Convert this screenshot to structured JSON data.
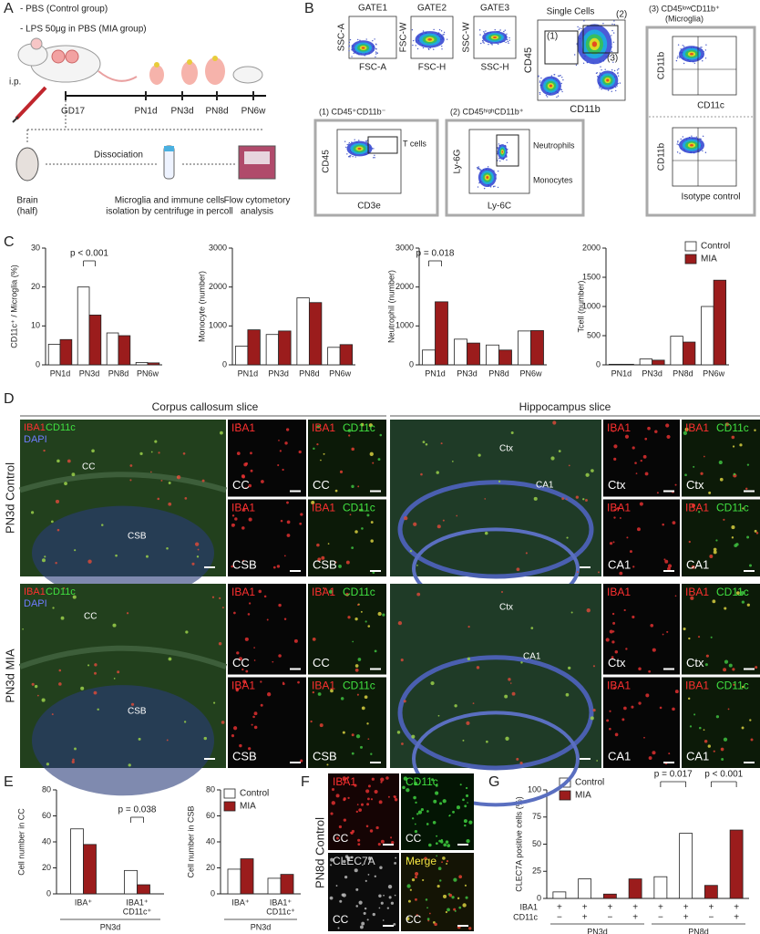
{
  "panel_labels": [
    "A",
    "B",
    "C",
    "D",
    "E",
    "F",
    "G"
  ],
  "panel_a": {
    "treatments": [
      "- PBS (Control group)",
      "- LPS 50μg in PBS (MIA group)"
    ],
    "injection": "i.p.",
    "timepoints": [
      "GD17",
      "PN1d",
      "PN3d",
      "PN8d",
      "PN6w"
    ],
    "steps": {
      "brain": [
        "Brain",
        "(half)"
      ],
      "dissociation": "Dissociation",
      "isolation": [
        "Microglia and immune cells",
        "isolation by centrifuge in percoll"
      ],
      "flow": [
        "Flow cytometory",
        "analysis"
      ]
    }
  },
  "panel_b": {
    "gates": [
      {
        "title": "GATE1",
        "y": "SSC-A",
        "x": "FSC-A"
      },
      {
        "title": "GATE2",
        "y": "FSC-W",
        "x": "FSC-H"
      },
      {
        "title": "GATE3",
        "y": "SSC-W",
        "x": "SSC-H"
      }
    ],
    "single": {
      "title": "Single Cells",
      "y": "CD45",
      "x": "CD11b",
      "regions": [
        "(1)",
        "(2)",
        "(3)"
      ]
    },
    "microglia": {
      "title": [
        "(3) CD45ˡᵒʷCD11b⁺",
        "(Microglia)"
      ],
      "plots": [
        {
          "y": "CD11b",
          "x": "CD11c"
        },
        {
          "y": "CD11b",
          "x": "Isotype control"
        }
      ]
    },
    "tcells": {
      "title": "(1) CD45⁺CD11b⁻",
      "y": "CD45",
      "x": "CD3e",
      "gate": "T cells"
    },
    "myeloid": {
      "title": "(2) CD45ʰⁱᵍʰCD11b⁺",
      "y": "Ly-6G",
      "x": "Ly-6C",
      "gates": [
        "Neutrophils",
        "Monocytes"
      ]
    }
  },
  "panel_d": {
    "titles": [
      "Corpus callosum slice",
      "Hippocampus slice"
    ],
    "rows": [
      {
        "label": "PN3d Control",
        "left_image": {
          "stains": [
            "IBA1",
            "CD11c",
            "DAPI"
          ],
          "regions": [
            "CC",
            "CSB"
          ]
        },
        "right_image": {
          "regions": [
            "Ctx",
            "CA1"
          ]
        },
        "tiles": [
          {
            "stains": [
              "IBA1"
            ],
            "region": "CC"
          },
          {
            "stains": [
              "IBA1",
              "CD11c"
            ],
            "region": "CC"
          },
          {
            "stains": [
              "IBA1"
            ],
            "region": "CSB"
          },
          {
            "stains": [
              "IBA1",
              "CD11c"
            ],
            "region": "CSB"
          },
          {
            "stains": [
              "IBA1"
            ],
            "region": "Ctx"
          },
          {
            "stains": [
              "IBA1",
              "CD11c"
            ],
            "region": "Ctx"
          },
          {
            "stains": [
              "IBA1"
            ],
            "region": "CA1"
          },
          {
            "stains": [
              "IBA1",
              "CD11c"
            ],
            "region": "CA1"
          }
        ]
      },
      {
        "label": "PN3d MIA",
        "left_image": {
          "stains": [
            "IBA1",
            "CD11c",
            "DAPI"
          ],
          "regions": [
            "CC",
            "CSB"
          ]
        },
        "right_image": {
          "regions": [
            "Ctx",
            "CA1"
          ]
        },
        "tiles": [
          {
            "stains": [
              "IBA1"
            ],
            "region": "CC"
          },
          {
            "stains": [
              "IBA1",
              "CD11c"
            ],
            "region": "CC"
          },
          {
            "stains": [
              "IBA1"
            ],
            "region": "CSB"
          },
          {
            "stains": [
              "IBA1",
              "CD11c"
            ],
            "region": "CSB"
          },
          {
            "stains": [
              "IBA1"
            ],
            "region": "Ctx"
          },
          {
            "stains": [
              "IBA1",
              "CD11c"
            ],
            "region": "Ctx"
          },
          {
            "stains": [
              "IBA1"
            ],
            "region": "CA1"
          },
          {
            "stains": [
              "IBA1",
              "CD11c"
            ],
            "region": "CA1"
          }
        ]
      }
    ]
  },
  "panel_f": {
    "row": "PN8d Control",
    "tiles": [
      {
        "stain": "IBA1",
        "region": "CC"
      },
      {
        "stain": "CD11c",
        "region": "CC"
      },
      {
        "stain": "CLEC7A",
        "region": "CC"
      },
      {
        "stain": "Merge",
        "region": "CC"
      }
    ]
  },
  "chart_data": [
    {
      "type": "bar",
      "y_title": "CD11c⁺ / Microglia (%)",
      "categories": [
        "PN1d",
        "PN3d",
        "PN8d",
        "PN6w"
      ],
      "series": [
        {
          "color": "#ffffff",
          "values": [
            5.3,
            20,
            8.2,
            0.6
          ]
        },
        {
          "color": "#9b1c1c",
          "values": [
            6.5,
            12.8,
            7.5,
            0.5
          ]
        }
      ],
      "ylim": [
        0,
        30
      ],
      "yticks": [
        0,
        10,
        20,
        30
      ],
      "annotations": [
        "p < 0.001"
      ]
    },
    {
      "type": "bar",
      "y_title": "Monocyte (number)",
      "categories": [
        "PN1d",
        "PN3d",
        "PN8d",
        "PN6w"
      ],
      "series": [
        {
          "color": "#ffffff",
          "values": [
            480,
            780,
            1720,
            450
          ]
        },
        {
          "color": "#9b1c1c",
          "values": [
            900,
            870,
            1600,
            520
          ]
        }
      ],
      "ylim": [
        0,
        3000
      ],
      "yticks": [
        0,
        1000,
        2000,
        3000
      ]
    },
    {
      "type": "bar",
      "y_title": "Neutrophil (number)",
      "categories": [
        "PN1d",
        "PN3d",
        "PN8d",
        "PN6w"
      ],
      "series": [
        {
          "color": "#ffffff",
          "values": [
            380,
            660,
            510,
            870
          ]
        },
        {
          "color": "#9b1c1c",
          "values": [
            1620,
            560,
            380,
            880
          ]
        }
      ],
      "ylim": [
        0,
        3000
      ],
      "yticks": [
        0,
        1000,
        2000,
        3000
      ],
      "annotations": [
        "p = 0.018"
      ]
    },
    {
      "type": "bar",
      "y_title": "Tcell (number)",
      "categories": [
        "PN1d",
        "PN3d",
        "PN8d",
        "PN6w"
      ],
      "series": [
        {
          "name": "Control",
          "color": "#ffffff",
          "values": [
            10,
            100,
            490,
            1000
          ]
        },
        {
          "name": "MIA",
          "color": "#9b1c1c",
          "values": [
            10,
            80,
            390,
            1450
          ]
        }
      ],
      "ylim": [
        0,
        2000
      ],
      "yticks": [
        0,
        500,
        1000,
        1500,
        2000
      ],
      "legend": true
    },
    {
      "type": "bar",
      "y_title": "Cell number in CC",
      "categories": [
        [
          "IBA⁺"
        ],
        [
          "IBA1⁺",
          "CD11c⁺"
        ]
      ],
      "group_labels": [
        "PN3d"
      ],
      "series": [
        {
          "color": "#ffffff",
          "values": [
            50,
            18
          ]
        },
        {
          "color": "#9b1c1c",
          "values": [
            38,
            7
          ]
        }
      ],
      "ylim": [
        0,
        80
      ],
      "yticks": [
        0,
        20,
        40,
        60,
        80
      ],
      "annotations": [
        "p = 0.038"
      ]
    },
    {
      "type": "bar",
      "y_title": "Cell number in CSB",
      "categories": [
        [
          "IBA⁺"
        ],
        [
          "IBA1⁺",
          "CD11c⁺"
        ]
      ],
      "group_labels": [
        "PN3d"
      ],
      "series": [
        {
          "name": "Control",
          "color": "#ffffff",
          "values": [
            19,
            12
          ]
        },
        {
          "name": "MIA",
          "color": "#9b1c1c",
          "values": [
            27,
            15
          ]
        }
      ],
      "ylim": [
        0,
        80
      ],
      "yticks": [
        0,
        20,
        40,
        60,
        80
      ],
      "legend": true
    },
    {
      "type": "bar",
      "y_title": "CLEC7A positive cells (%)",
      "group_labels": [
        "PN3d",
        "PN8d"
      ],
      "sign_rows": [
        {
          "name": "IBA1",
          "signs": [
            "+",
            "+",
            "+",
            "+",
            "+",
            "+",
            "+",
            "+"
          ]
        },
        {
          "name": "CD11c",
          "signs": [
            "−",
            "+",
            "−",
            "+",
            "−",
            "+",
            "−",
            "+"
          ]
        }
      ],
      "series": [
        {
          "name": "Control",
          "color": "#ffffff",
          "values": [
            6,
            18,
            null,
            null,
            20,
            60,
            null,
            null
          ]
        },
        {
          "name": "MIA",
          "color": "#9b1c1c",
          "values": [
            null,
            null,
            4,
            18,
            null,
            null,
            12,
            63
          ]
        }
      ],
      "ylim": [
        0,
        100
      ],
      "yticks": [
        0,
        25,
        50,
        75,
        100
      ],
      "annotations": [
        "p = 0.017",
        "p < 0.001"
      ],
      "legend": true
    }
  ]
}
